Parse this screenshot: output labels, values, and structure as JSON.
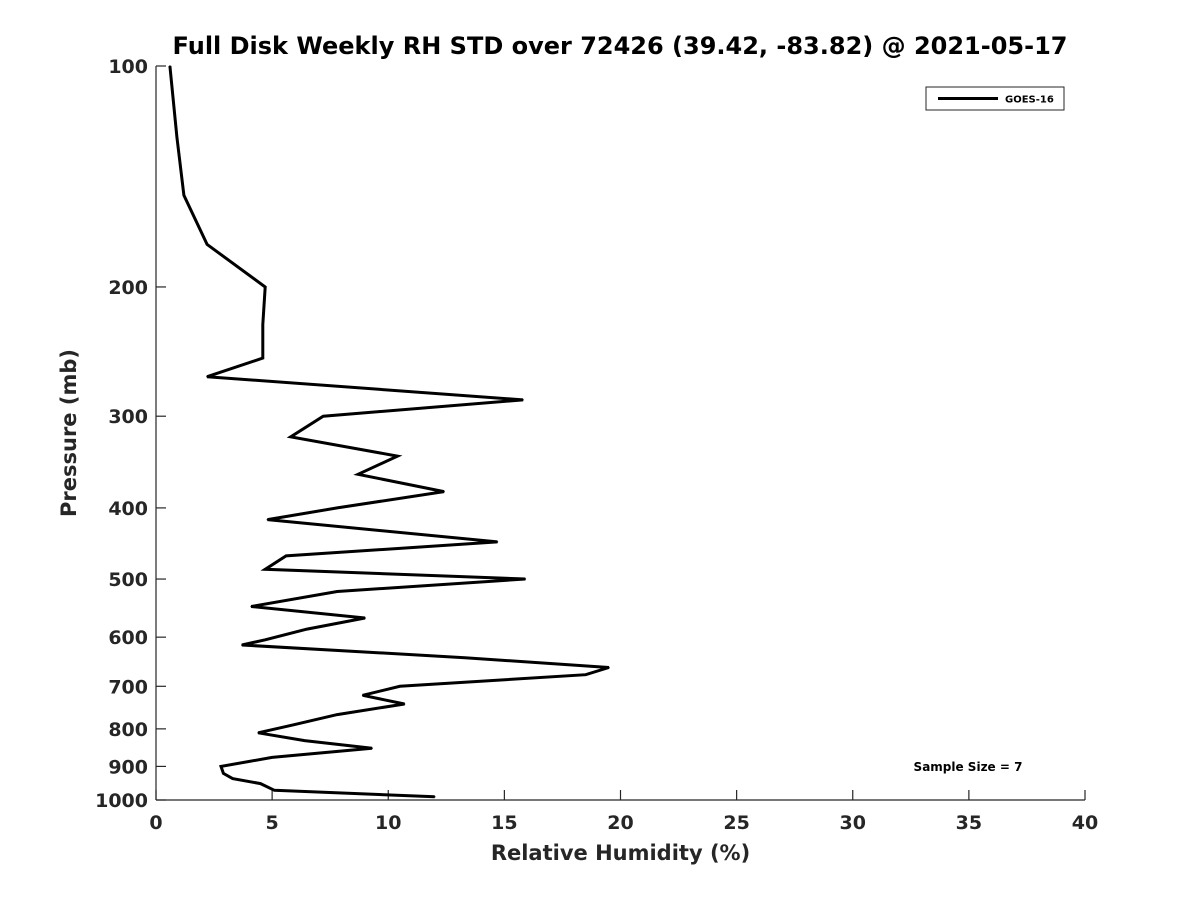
{
  "chart_data": {
    "type": "line",
    "title": "Full Disk Weekly RH STD over 72426 (39.42, -83.82) @ 2021-05-17",
    "xlabel": "Relative Humidity (%)",
    "ylabel": "Pressure (mb)",
    "xlim": [
      0,
      40
    ],
    "ylim": [
      100,
      1000
    ],
    "yscale": "log",
    "y_reversed": true,
    "x_ticks": [
      0,
      5,
      10,
      15,
      20,
      25,
      30,
      35,
      40
    ],
    "y_ticks": [
      100,
      200,
      300,
      400,
      500,
      600,
      700,
      800,
      900,
      1000
    ],
    "grid": false,
    "legend_position": "top-right",
    "annotation": "Sample Size = 7",
    "series": [
      {
        "name": "GOES-16",
        "color": "#000000",
        "x": [
          0.6,
          0.9,
          1.2,
          2.2,
          4.7,
          4.6,
          4.6,
          2.2,
          15.8,
          7.2,
          5.8,
          10.4,
          8.7,
          12.4,
          7.8,
          4.8,
          14.7,
          5.6,
          4.7,
          15.9,
          7.8,
          4.1,
          9.0,
          6.5,
          4.7,
          3.7,
          13.3,
          19.5,
          18.5,
          10.5,
          8.9,
          10.7,
          7.8,
          5.9,
          4.4,
          6.4,
          9.3,
          5.0,
          2.8,
          2.9,
          3.3,
          4.5,
          5.1,
          12.0
        ],
        "y": [
          100,
          125,
          150,
          175,
          200,
          225,
          250,
          265,
          285,
          300,
          320,
          340,
          360,
          380,
          400,
          415,
          445,
          465,
          485,
          500,
          520,
          545,
          565,
          585,
          605,
          615,
          640,
          660,
          675,
          700,
          720,
          740,
          765,
          790,
          810,
          830,
          850,
          875,
          900,
          920,
          935,
          950,
          970,
          990
        ]
      }
    ]
  }
}
